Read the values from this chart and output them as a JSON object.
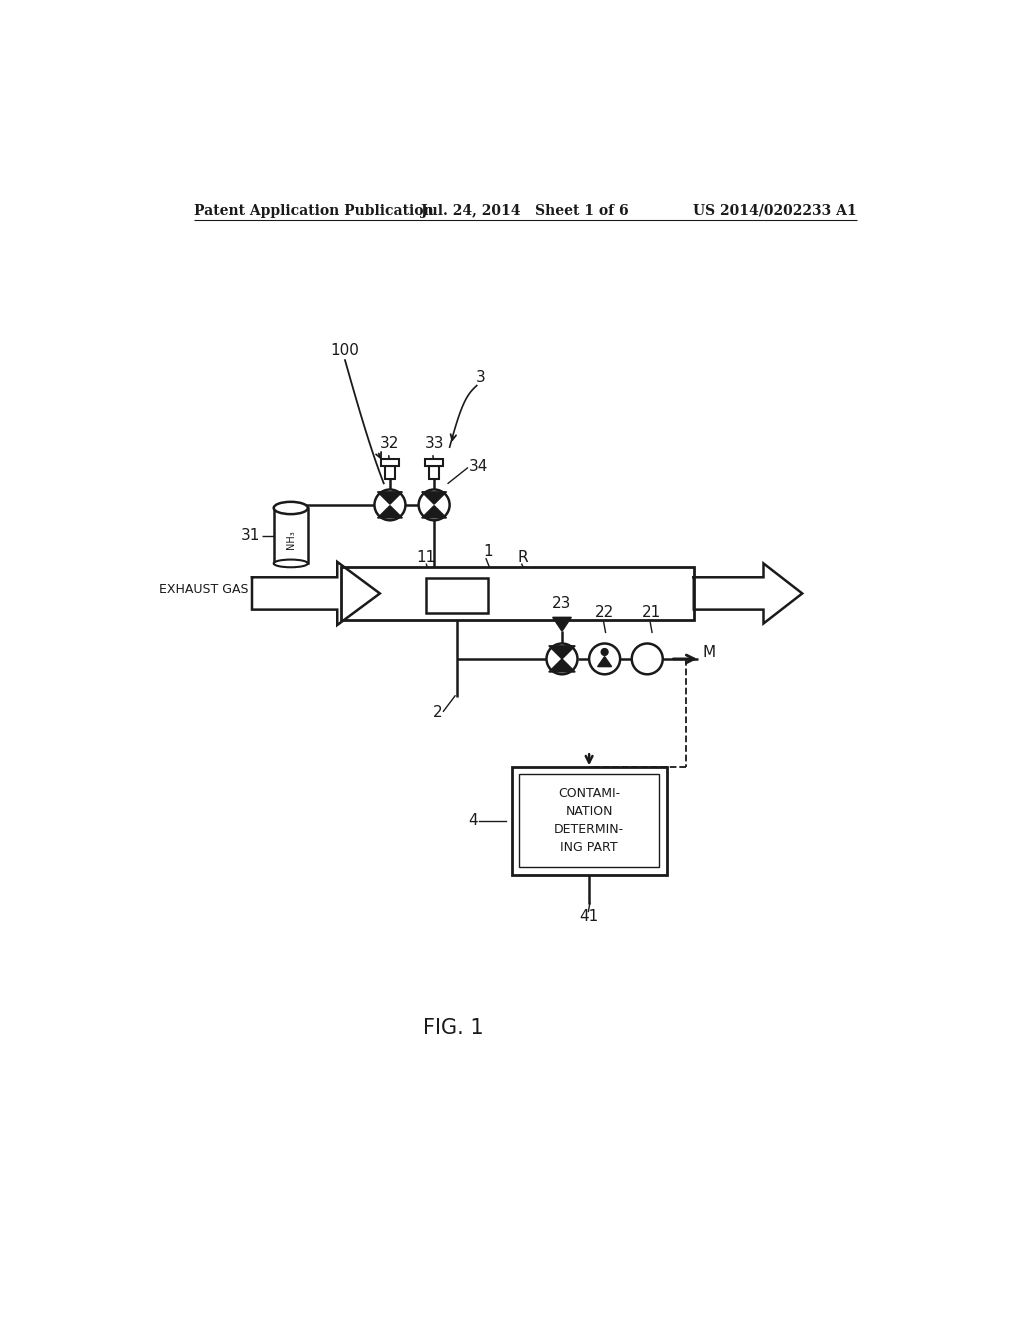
{
  "bg_color": "#ffffff",
  "line_color": "#1a1a1a",
  "header_left": "Patent Application Publication",
  "header_mid": "Jul. 24, 2014   Sheet 1 of 6",
  "header_right": "US 2014/0202233 A1",
  "fig_label": "FIG. 1"
}
